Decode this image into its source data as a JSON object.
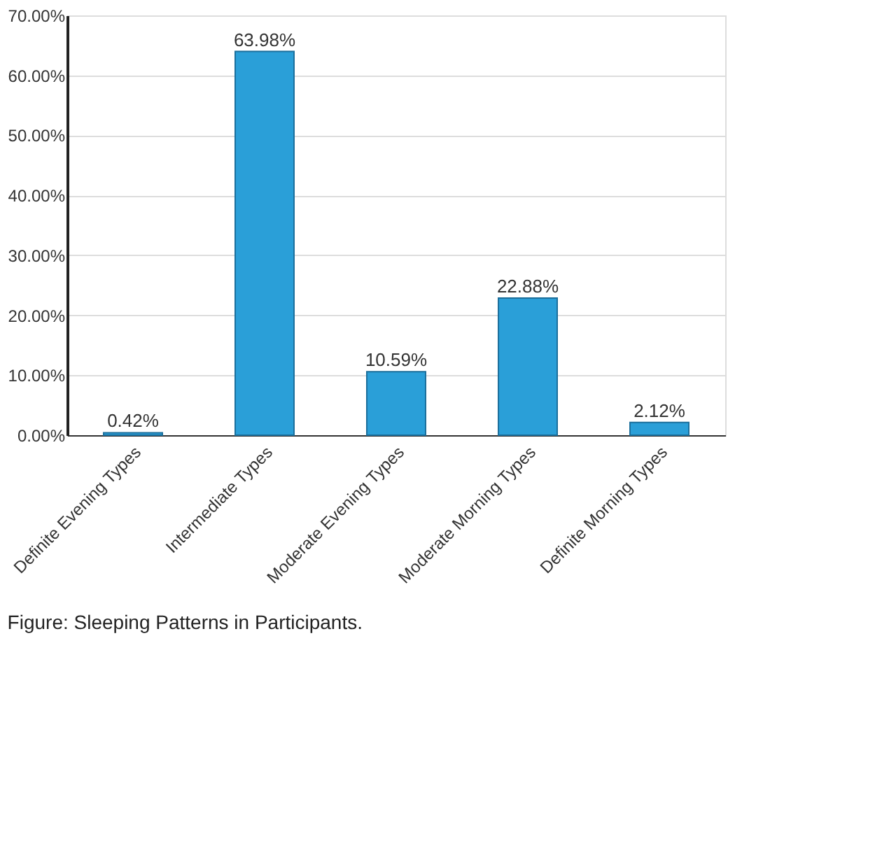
{
  "chart_data": {
    "type": "bar",
    "categories": [
      "Definite Evening Types",
      "Intermediate Types",
      "Moderate Evening Types",
      "Moderate Morning Types",
      "Definite Morning Types"
    ],
    "values": [
      0.42,
      63.98,
      10.59,
      22.88,
      2.12
    ],
    "value_labels": [
      "0.42%",
      "63.98%",
      "10.59%",
      "22.88%",
      "2.12%"
    ],
    "color": "#2a9fd8",
    "ylim": [
      0,
      70
    ],
    "yticks": [
      {
        "value": 0,
        "label": "0.00%"
      },
      {
        "value": 10,
        "label": "10.00%"
      },
      {
        "value": 20,
        "label": "20.00%"
      },
      {
        "value": 30,
        "label": "30.00%"
      },
      {
        "value": 40,
        "label": "40.00%"
      },
      {
        "value": 50,
        "label": "50.00%"
      },
      {
        "value": 60,
        "label": "60.00%"
      },
      {
        "value": 70,
        "label": "70.00%"
      }
    ],
    "grid": "y",
    "annotations": [
      "Figure: Sleeping Patterns in Participants."
    ]
  }
}
